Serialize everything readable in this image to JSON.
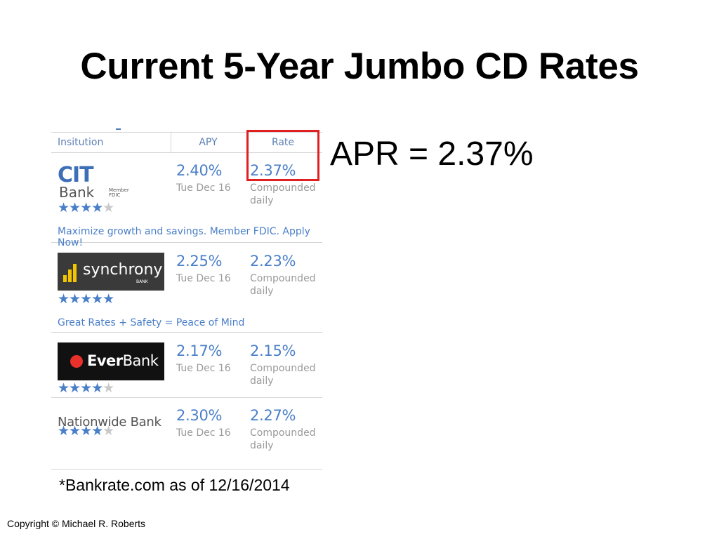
{
  "slide": {
    "title": "Current 5-Year Jumbo CD Rates",
    "apr_note": "APR = 2.37%",
    "source": "*Bankrate.com as of 12/16/2014",
    "copyright": "Copyright © Michael R. Roberts"
  },
  "table": {
    "headers": {
      "institution": "Insitution",
      "apy": "APY",
      "rate": "Rate"
    },
    "rows": [
      {
        "bank_logo_text": "CIT",
        "bank_sub": "Bank",
        "fdic": "Member FDIC",
        "apy": "2.40%",
        "apy_date": "Tue Dec 16",
        "rate": "2.37%",
        "rate_note_1": "Compounded",
        "rate_note_2": "daily",
        "stars": 4,
        "stars_on": "★★★★",
        "stars_off": "★",
        "tagline": "Maximize growth and savings. Member FDIC. Apply Now!"
      },
      {
        "bank_logo_text": "synchrony",
        "bank_sub": "BANK",
        "apy": "2.25%",
        "apy_date": "Tue Dec 16",
        "rate": "2.23%",
        "rate_note_1": "Compounded",
        "rate_note_2": "daily",
        "stars": 5,
        "stars_on": "★★★★★",
        "stars_off": "",
        "tagline": "Great Rates + Safety = Peace of Mind"
      },
      {
        "bank_logo_text_bold": "Ever",
        "bank_logo_text_light": "Bank",
        "apy": "2.17%",
        "apy_date": "Tue Dec 16",
        "rate": "2.15%",
        "rate_note_1": "Compounded",
        "rate_note_2": "daily",
        "stars": 4,
        "stars_on": "★★★★",
        "stars_off": "★"
      },
      {
        "bank_name": "Nationwide Bank",
        "apy": "2.30%",
        "apy_date": "Tue Dec 16",
        "rate": "2.27%",
        "rate_note_1": "Compounded",
        "rate_note_2": "daily",
        "stars": 4,
        "stars_on": "★★★★",
        "stars_off": "★"
      }
    ]
  },
  "colors": {
    "accent": "#4a7fc8",
    "highlight": "#e02020",
    "synchrony_bar": "#f2c500",
    "everbank_dot": "#e8312a"
  }
}
